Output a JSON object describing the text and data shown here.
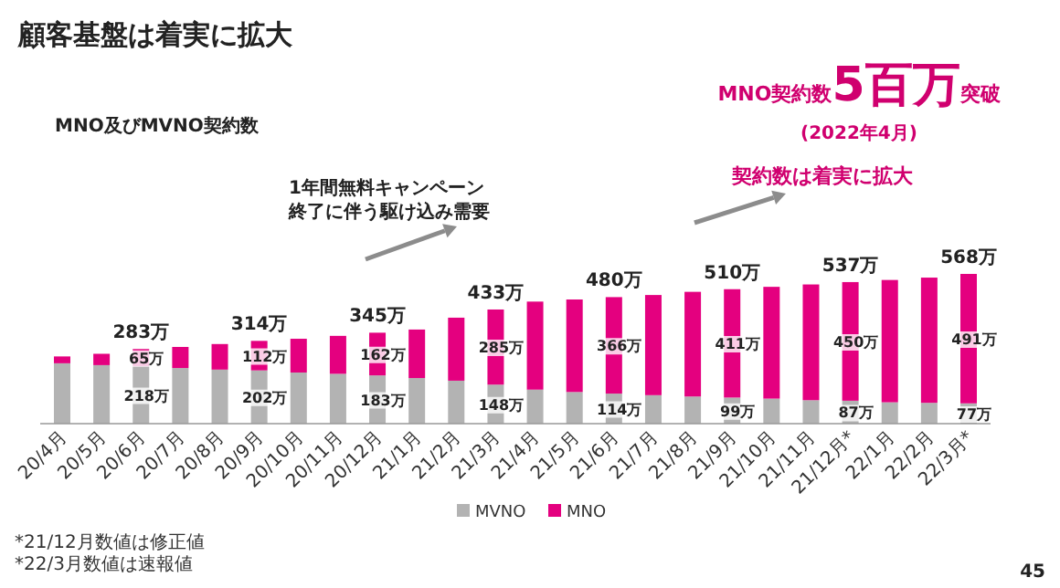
{
  "chart_data": {
    "type": "bar",
    "stacked": true,
    "title": "顧客基盤は着実に拡大",
    "subtitle": "MNO及びMVNO契約数",
    "categories": [
      "20/4月",
      "20/5月",
      "20/6月",
      "20/7月",
      "20/8月",
      "20/9月",
      "20/10月",
      "20/11月",
      "20/12月",
      "21/1月",
      "21/2月",
      "21/3月",
      "21/4月",
      "21/5月",
      "21/6月",
      "21/7月",
      "21/8月",
      "21/9月",
      "21/10月",
      "21/11月",
      "21/12月*",
      "22/1月",
      "22/2月",
      "22/3月*"
    ],
    "series": [
      {
        "name": "MVNO",
        "color": "#b3b3b3",
        "values": [
          229,
          222,
          218,
          211,
          205,
          202,
          194,
          189,
          183,
          173,
          163,
          148,
          129,
          120,
          114,
          108,
          103,
          99,
          95,
          89,
          87,
          81,
          79,
          77
        ],
        "value_labels": [
          null,
          null,
          "218万",
          null,
          null,
          "202万",
          null,
          null,
          "183万",
          null,
          null,
          "148万",
          null,
          null,
          "114万",
          null,
          null,
          "99万",
          null,
          null,
          "87万",
          null,
          null,
          "77万"
        ]
      },
      {
        "name": "MNO",
        "color": "#e4007f",
        "values": [
          26,
          43,
          65,
          80,
          97,
          112,
          128,
          144,
          162,
          184,
          239,
          285,
          334,
          351,
          366,
          380,
          397,
          411,
          424,
          439,
          450,
          464,
          475,
          491
        ],
        "value_labels": [
          null,
          null,
          "65万",
          null,
          null,
          "112万",
          null,
          null,
          "162万",
          null,
          null,
          "285万",
          null,
          null,
          "366万",
          null,
          null,
          "411万",
          null,
          null,
          "450万",
          null,
          null,
          "491万"
        ]
      }
    ],
    "totals": [
      null,
      null,
      "283万",
      null,
      null,
      "314万",
      null,
      null,
      "345万",
      null,
      null,
      "433万",
      null,
      null,
      "480万",
      null,
      null,
      "510万",
      null,
      null,
      "537万",
      null,
      null,
      "568万"
    ],
    "legend": "bottom",
    "annotations": [
      "MNO契約数**5百万**突破",
      "(2022年4月)",
      "契約数は着実に拡大",
      "1年間無料キャンペーン",
      "終了に伴う駆け込み需要",
      "*21/12月数値は修正値\n*22/3月数値は速報値",
      "45"
    ]
  }
}
